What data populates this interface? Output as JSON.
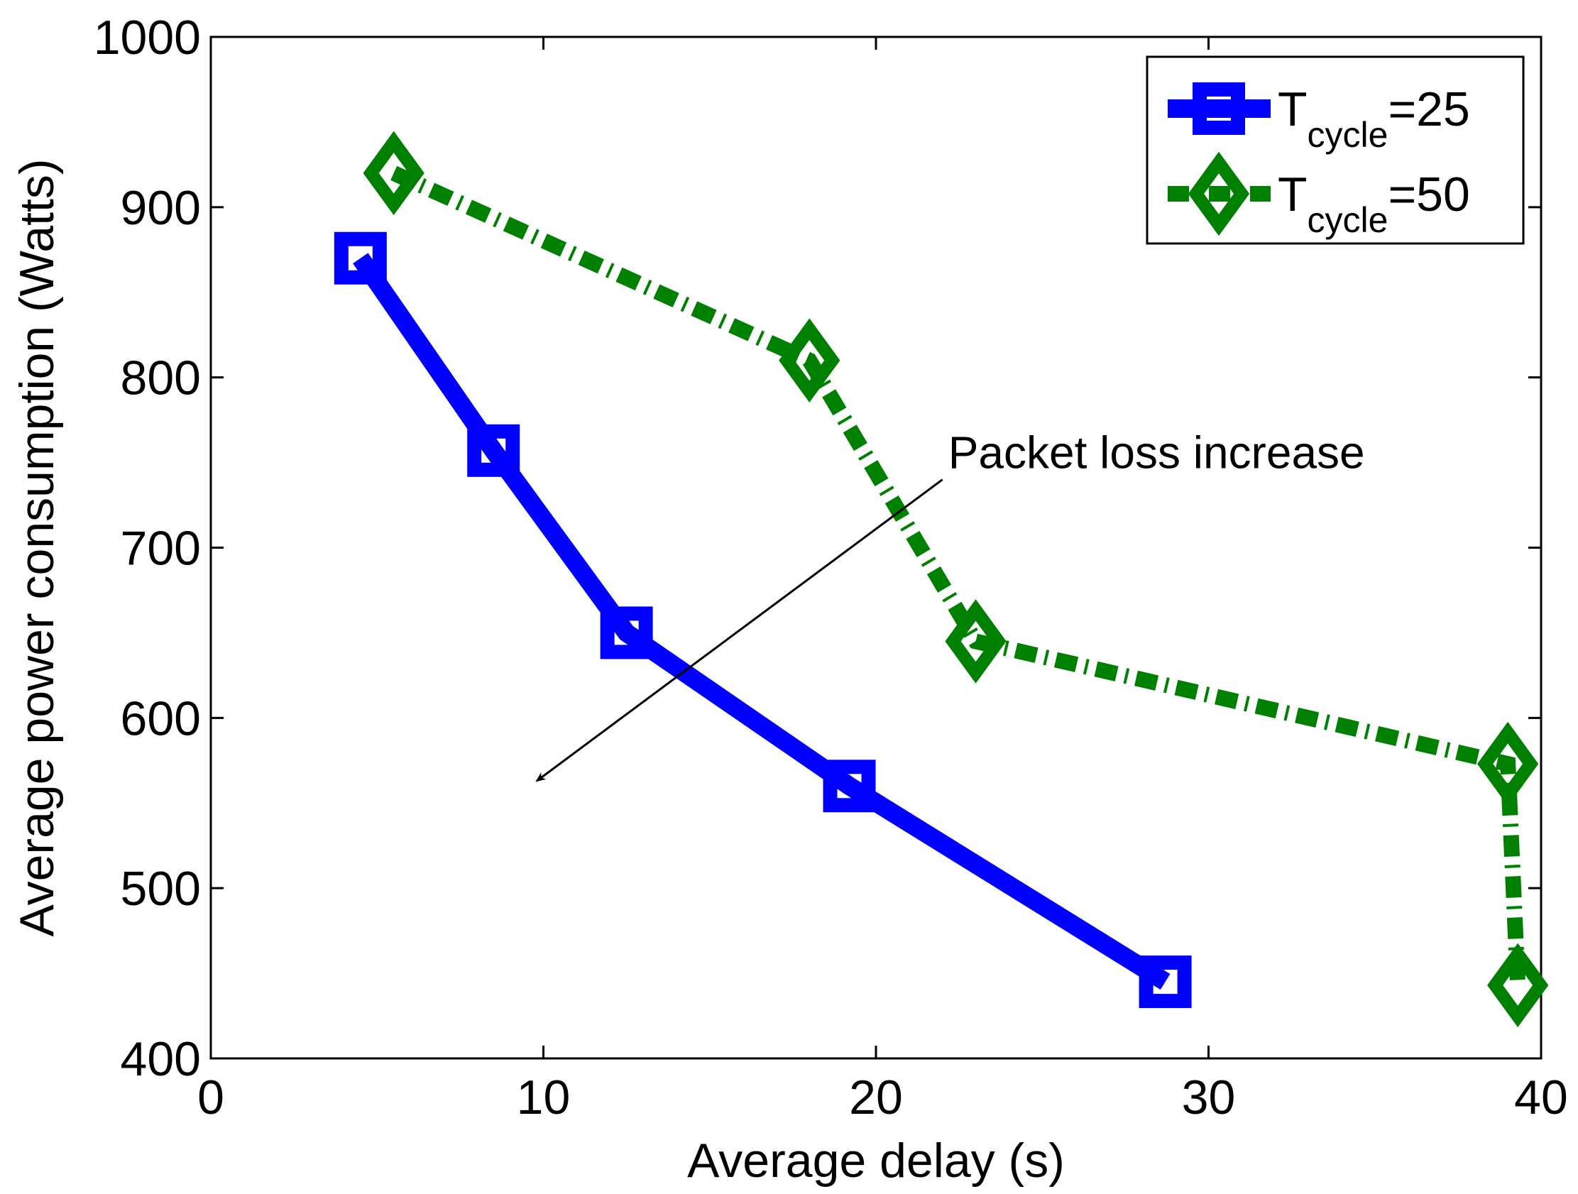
{
  "chart_data": {
    "type": "line",
    "title": "",
    "xlabel": "Average delay (s)",
    "ylabel": "Average power consumption (Watts)",
    "xlim": [
      0,
      40
    ],
    "ylim": [
      400,
      1000
    ],
    "xticks": [
      0,
      10,
      20,
      30,
      40
    ],
    "yticks": [
      400,
      500,
      600,
      700,
      800,
      900,
      1000
    ],
    "grid": false,
    "legend_position": "top-right",
    "series": [
      {
        "name": "T_cycle=25",
        "legend_base": "T",
        "legend_sub": "cycle",
        "legend_suffix": "=25",
        "color": "#0000ff",
        "line_style": "solid",
        "marker": "square",
        "x": [
          4.5,
          8.5,
          12.5,
          19.2,
          28.7
        ],
        "y": [
          870,
          757,
          650,
          560,
          445
        ]
      },
      {
        "name": "T_cycle=50",
        "legend_base": "T",
        "legend_sub": "cycle",
        "legend_suffix": "=50",
        "color": "#008000",
        "line_style": "dash-dot",
        "marker": "diamond",
        "x": [
          5.5,
          18.0,
          23.0,
          39.0,
          39.3
        ],
        "y": [
          920,
          810,
          645,
          573,
          443
        ]
      }
    ],
    "annotations": [
      {
        "text": "Packet loss increase",
        "arrow_from": [
          22.0,
          740
        ],
        "arrow_to": [
          9.8,
          563
        ],
        "text_at": [
          22.0,
          755
        ]
      }
    ]
  }
}
